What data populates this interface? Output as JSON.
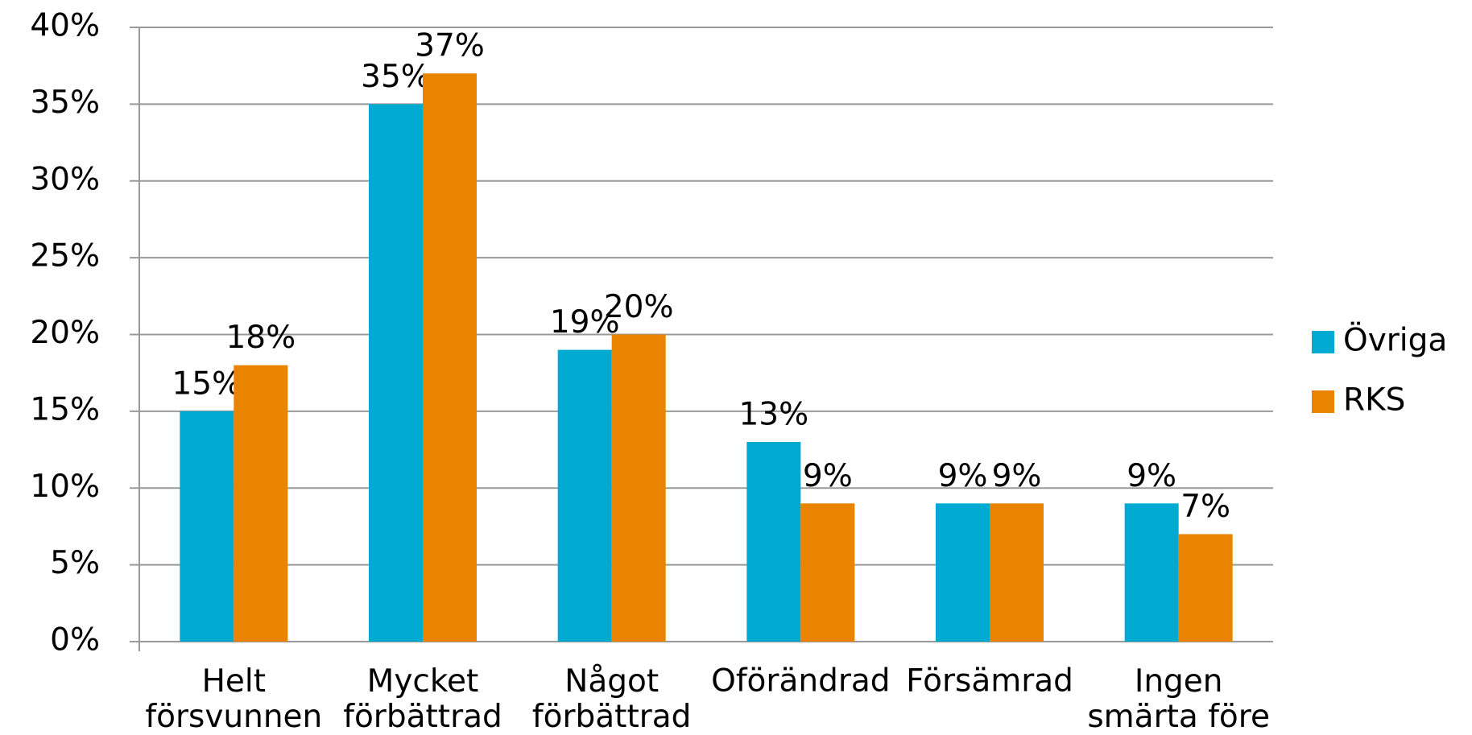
{
  "chart_data": {
    "type": "bar",
    "categories": [
      "Helt försvunnen",
      "Mycket förbättrad",
      "Något förbättrad",
      "Oförändrad",
      "Försämrad",
      "Ingen smärta före"
    ],
    "series": [
      {
        "name": "Övriga",
        "color": "#00aad0",
        "values": [
          15,
          35,
          19,
          13,
          9,
          9
        ],
        "value_labels": [
          "15%",
          "35%",
          "19%",
          "13%",
          "9%",
          "9%"
        ]
      },
      {
        "name": "RKS",
        "color": "#e98300",
        "values": [
          18,
          37,
          20,
          9,
          9,
          7
        ],
        "value_labels": [
          "18%",
          "37%",
          "20%",
          "9%",
          "9%",
          "7%"
        ]
      }
    ],
    "ylim": [
      0,
      40
    ],
    "yticks": [
      {
        "value": 0,
        "label": "0%"
      },
      {
        "value": 5,
        "label": "5%"
      },
      {
        "value": 10,
        "label": "10%"
      },
      {
        "value": 15,
        "label": "15%"
      },
      {
        "value": 20,
        "label": "20%"
      },
      {
        "value": 25,
        "label": "25%"
      },
      {
        "value": 30,
        "label": "30%"
      },
      {
        "value": 35,
        "label": "35%"
      },
      {
        "value": 40,
        "label": "40%"
      }
    ],
    "grid": true,
    "legend": "right"
  }
}
